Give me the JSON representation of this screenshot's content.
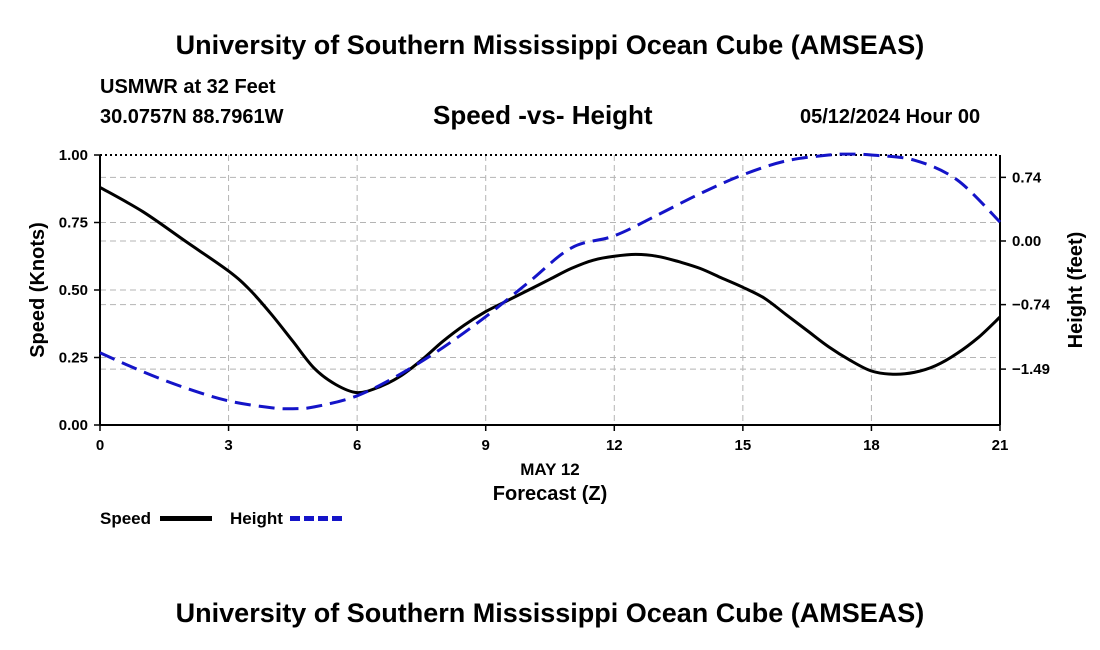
{
  "header": {
    "title": "University of Southern Mississippi Ocean Cube (AMSEAS)",
    "station": "USMWR at 32 Feet",
    "coordinates": "30.0757N  88.7961W",
    "subtitle": "Speed -vs- Height",
    "datetime": "05/12/2024 Hour 00"
  },
  "footer": {
    "title": "University of Southern Mississippi Ocean Cube (AMSEAS)"
  },
  "legend": {
    "speed_label": "Speed",
    "height_label": "Height"
  },
  "colors": {
    "speed": "#000000",
    "height": "#1414c8",
    "grid": "#b4b4b4"
  },
  "chart_data": {
    "type": "line",
    "title": "Speed -vs- Height",
    "xlabel": "Forecast (Z)",
    "xlabel_date": "MAY 12",
    "ylabel_left": "Speed (Knots)",
    "ylabel_right": "Height (feet)",
    "xlim": [
      0,
      21
    ],
    "ylim_left": [
      0,
      1.0
    ],
    "ylim_right": [
      -2.14,
      1.0
    ],
    "x_ticks": [
      0,
      3,
      6,
      9,
      12,
      15,
      18,
      21
    ],
    "x_tick_labels": [
      "0",
      "3",
      "6",
      "9",
      "12",
      "15",
      "18",
      "21"
    ],
    "y_left_ticks": [
      0,
      0.25,
      0.5,
      0.75,
      1.0
    ],
    "y_left_tick_labels": [
      "0.00",
      "0.25",
      "0.50",
      "0.75",
      "1.00"
    ],
    "y_right_ticks": [
      -1.49,
      -0.74,
      0.0,
      0.74
    ],
    "y_right_tick_labels": [
      "−1.49",
      "−0.74",
      "0.00",
      "0.74"
    ],
    "grid": true,
    "series": [
      {
        "name": "Speed",
        "axis": "left",
        "style": "solid",
        "x": [
          0,
          1,
          2,
          3,
          3.5,
          4,
          4.5,
          5,
          5.5,
          6,
          6.5,
          7,
          7.5,
          8,
          8.5,
          9,
          9.5,
          10,
          10.5,
          11,
          11.5,
          12,
          12.5,
          13,
          13.5,
          14,
          14.5,
          15,
          15.5,
          16,
          16.5,
          17,
          17.5,
          18,
          18.5,
          19,
          19.5,
          20,
          20.5,
          21
        ],
        "values": [
          0.88,
          0.79,
          0.68,
          0.57,
          0.5,
          0.41,
          0.31,
          0.21,
          0.15,
          0.12,
          0.14,
          0.18,
          0.24,
          0.31,
          0.37,
          0.42,
          0.46,
          0.5,
          0.54,
          0.58,
          0.61,
          0.625,
          0.632,
          0.625,
          0.605,
          0.58,
          0.545,
          0.51,
          0.47,
          0.41,
          0.35,
          0.29,
          0.24,
          0.2,
          0.188,
          0.195,
          0.22,
          0.265,
          0.325,
          0.4
        ]
      },
      {
        "name": "Height",
        "axis": "right",
        "style": "dashed",
        "x": [
          0,
          1,
          2,
          3,
          4,
          4.5,
          5,
          6,
          7,
          8,
          9,
          10,
          11,
          12,
          13,
          14,
          15,
          16,
          17,
          17.5,
          18,
          19,
          20,
          21
        ],
        "values": [
          -1.3,
          -1.52,
          -1.71,
          -1.86,
          -1.94,
          -1.95,
          -1.93,
          -1.8,
          -1.55,
          -1.24,
          -0.88,
          -0.48,
          -0.08,
          0.06,
          0.3,
          0.55,
          0.77,
          0.93,
          1.0,
          1.01,
          1.0,
          0.94,
          0.71,
          0.22
        ]
      }
    ]
  }
}
